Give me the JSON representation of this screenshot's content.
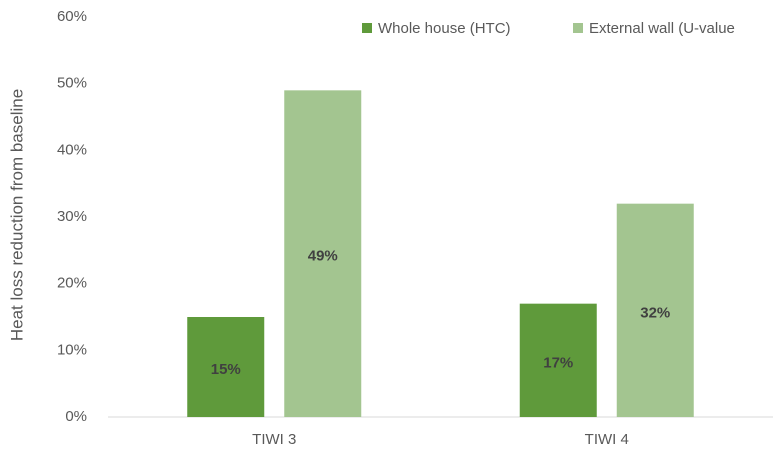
{
  "chart_data": {
    "type": "bar",
    "y_label": "Heat loss reduction from baseline",
    "categories": [
      "TIWI 3",
      "TIWI 4"
    ],
    "series": [
      {
        "name": "Whole house (HTC)",
        "color": "#5f9a3b",
        "values": [
          15,
          17
        ],
        "value_labels": [
          "15%",
          "17%"
        ]
      },
      {
        "name": "External wall (U-value",
        "color": "#a3c590",
        "values": [
          49,
          32
        ],
        "value_labels": [
          "49%",
          "32%"
        ]
      }
    ],
    "ylim": [
      0,
      60
    ],
    "yticks": [
      {
        "value": 0,
        "label": "0%"
      },
      {
        "value": 10,
        "label": "10%"
      },
      {
        "value": 20,
        "label": "20%"
      },
      {
        "value": 30,
        "label": "30%"
      },
      {
        "value": 40,
        "label": "40%"
      },
      {
        "value": 50,
        "label": "50%"
      },
      {
        "value": 60,
        "label": "60%"
      }
    ],
    "grid": false,
    "legend": "top-right"
  }
}
